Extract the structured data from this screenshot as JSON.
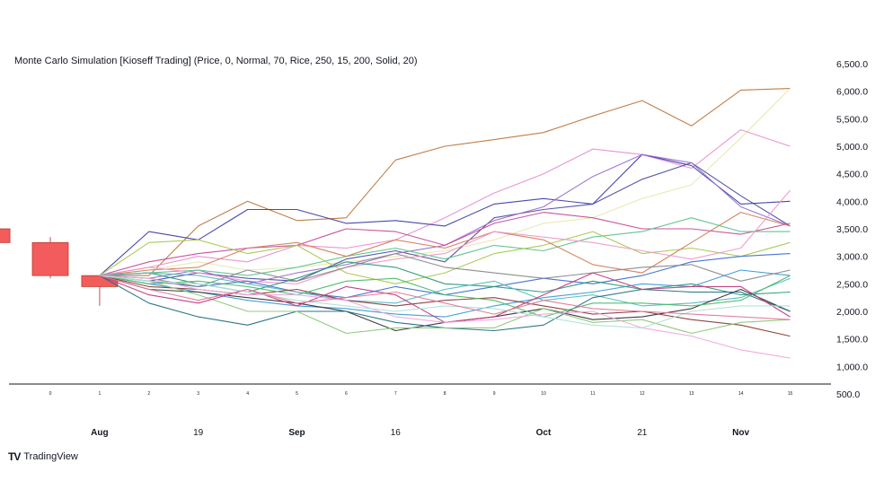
{
  "chart_data": {
    "type": "line",
    "title": "Monte Carlo Simulation [Kioseff Trading] (Price, 0, Normal, 70, Rice, 250, 15, 200, Solid, 20)",
    "ylim": [
      500,
      6500
    ],
    "y_ticks": [
      "6,500.0",
      "6,000.0",
      "5,500.0",
      "5,000.0",
      "4,500.0",
      "4,000.0",
      "3,500.0",
      "3,000.0",
      "2,500.0",
      "2,000.0",
      "1,500.0",
      "1,000.0",
      "500.0"
    ],
    "y_tick_values": [
      6500,
      6000,
      5500,
      5000,
      4500,
      4000,
      3500,
      3000,
      2500,
      2000,
      1500,
      1000,
      500
    ],
    "date_ticks": [
      {
        "label": "Aug",
        "pos": 1,
        "bold": true
      },
      {
        "label": "19",
        "pos": 3,
        "bold": false
      },
      {
        "label": "Sep",
        "pos": 5,
        "bold": true
      },
      {
        "label": "16",
        "pos": 7,
        "bold": false
      },
      {
        "label": "Oct",
        "pos": 10,
        "bold": true
      },
      {
        "label": "21",
        "pos": 12,
        "bold": false
      },
      {
        "label": "Nov",
        "pos": 14,
        "bold": true
      }
    ],
    "step_labels": [
      "0",
      "1",
      "2",
      "3",
      "4",
      "5",
      "6",
      "7",
      "8",
      "9",
      "10",
      "11",
      "12",
      "13",
      "14",
      "15"
    ],
    "candles": [
      {
        "pos": -1,
        "open": 3500,
        "close": 3250,
        "high": 3500,
        "low": 3250
      },
      {
        "pos": 0,
        "open": 3250,
        "close": 2650,
        "high": 3350,
        "low": 2600
      },
      {
        "pos": 1,
        "open": 2650,
        "close": 2450,
        "high": 2650,
        "low": 2100
      }
    ],
    "x": [
      1,
      2,
      3,
      4,
      5,
      6,
      7,
      8,
      9,
      10,
      11,
      12,
      13,
      14,
      15
    ],
    "series": [
      {
        "color": "#c0763a",
        "values": [
          2650,
          2650,
          3550,
          4000,
          3650,
          3700,
          4750,
          5000,
          5120,
          5250,
          5550,
          5830,
          5370,
          6020,
          6050
        ]
      },
      {
        "color": "#e8e8b0",
        "values": [
          2650,
          2750,
          2900,
          2750,
          2800,
          2900,
          3000,
          3100,
          3300,
          3600,
          3700,
          4050,
          4300,
          5150,
          6050
        ]
      },
      {
        "color": "#e88fd0",
        "values": [
          2650,
          2800,
          3000,
          2900,
          3200,
          3150,
          3300,
          3700,
          4150,
          4500,
          4950,
          4850,
          4600,
          5300,
          5000
        ]
      },
      {
        "color": "#4e4ea8",
        "values": [
          2650,
          2550,
          2700,
          2600,
          2550,
          2950,
          3100,
          2900,
          3700,
          3850,
          3950,
          4400,
          4700,
          4100,
          3550
        ]
      },
      {
        "color": "#3f3fa8",
        "values": [
          2650,
          3450,
          3300,
          3850,
          3850,
          3600,
          3650,
          3550,
          3950,
          4050,
          3950,
          4850,
          4650,
          3950,
          4000
        ]
      },
      {
        "color": "#9b6fd0",
        "values": [
          2650,
          2600,
          2750,
          2500,
          2700,
          2850,
          3050,
          3200,
          3650,
          3900,
          4450,
          4850,
          4700,
          3900,
          3550
        ]
      },
      {
        "color": "#c74c9a",
        "values": [
          2650,
          2900,
          3050,
          3150,
          3200,
          3500,
          3450,
          3200,
          3600,
          3800,
          3700,
          3500,
          3500,
          3400,
          3600
        ]
      },
      {
        "color": "#5ac38c",
        "values": [
          2650,
          2700,
          2750,
          2650,
          2800,
          3000,
          3150,
          2950,
          3200,
          3100,
          3350,
          3450,
          3700,
          3450,
          3450
        ]
      },
      {
        "color": "#a8c850",
        "values": [
          2650,
          3250,
          3300,
          3050,
          3200,
          2700,
          2500,
          2700,
          3050,
          3200,
          3450,
          3050,
          3150,
          3000,
          3250
        ]
      },
      {
        "color": "#d2805a",
        "values": [
          2650,
          2750,
          2800,
          3150,
          3250,
          3000,
          3300,
          3150,
          3450,
          3300,
          2850,
          2700,
          3250,
          3800,
          3550
        ]
      },
      {
        "color": "#ee99c8",
        "values": [
          2650,
          2800,
          2700,
          2550,
          2500,
          2800,
          2950,
          3050,
          3450,
          3350,
          3250,
          3100,
          2950,
          3150,
          4200
        ]
      },
      {
        "color": "#3d6fd0",
        "values": [
          2650,
          2550,
          2450,
          2550,
          2350,
          2250,
          2450,
          2300,
          2450,
          2600,
          2500,
          2650,
          2900,
          3000,
          3050
        ]
      },
      {
        "color": "#3a9ad8",
        "values": [
          2650,
          2500,
          2350,
          2200,
          2100,
          2050,
          1950,
          1900,
          2100,
          2250,
          2350,
          2500,
          2450,
          2750,
          2650
        ]
      },
      {
        "color": "#888888",
        "values": [
          2650,
          2600,
          2450,
          2750,
          2550,
          2800,
          3050,
          2800,
          2700,
          2600,
          2700,
          2800,
          2850,
          2550,
          2750
        ]
      },
      {
        "color": "#2a9a78",
        "values": [
          2650,
          2700,
          2500,
          2350,
          2600,
          2900,
          2800,
          2500,
          2450,
          2350,
          2550,
          2400,
          2500,
          2300,
          2350
        ]
      },
      {
        "color": "#56b9c0",
        "values": [
          2650,
          2700,
          2650,
          2500,
          2350,
          2200,
          2150,
          2400,
          2550,
          2200,
          2300,
          2100,
          2150,
          2250,
          2600
        ]
      },
      {
        "color": "#333333",
        "values": [
          2650,
          2400,
          2350,
          2250,
          2150,
          2000,
          1650,
          1800,
          1900,
          2050,
          1850,
          1900,
          2050,
          2400,
          2000
        ]
      },
      {
        "color": "#8a3a3a",
        "values": [
          2650,
          2450,
          2400,
          2300,
          2400,
          2200,
          2100,
          2200,
          2250,
          2100,
          1950,
          2000,
          1850,
          1750,
          1550
        ]
      },
      {
        "color": "#1f6f80",
        "values": [
          2650,
          2150,
          1900,
          1750,
          2000,
          2000,
          1800,
          1700,
          1650,
          1750,
          2250,
          2400,
          2350,
          2350,
          2000
        ]
      },
      {
        "color": "#8cc878",
        "values": [
          2650,
          2550,
          2300,
          2000,
          2000,
          1600,
          1700,
          1700,
          1700,
          2050,
          1800,
          1850,
          1600,
          1800,
          1850
        ]
      },
      {
        "color": "#c03a80",
        "values": [
          2650,
          2300,
          2150,
          2400,
          2100,
          2450,
          2300,
          1800,
          1900,
          2300,
          2700,
          2400,
          2450,
          2450,
          1900
        ]
      },
      {
        "color": "#4dba6a",
        "values": [
          2650,
          2500,
          2550,
          2450,
          2300,
          2550,
          2600,
          2300,
          2200,
          1900,
          2150,
          2150,
          2100,
          2200,
          2650
        ]
      },
      {
        "color": "#f0a8e0",
        "values": [
          2650,
          2600,
          2400,
          2300,
          2300,
          2200,
          1900,
          1800,
          1850,
          1950,
          2000,
          1700,
          1550,
          1300,
          1150
        ]
      },
      {
        "color": "#b0e0d8",
        "values": [
          2650,
          2550,
          2500,
          2350,
          2200,
          2100,
          2000,
          2100,
          2050,
          1900,
          1750,
          1700,
          2000,
          2100,
          2100
        ]
      },
      {
        "color": "#e07a9a",
        "values": [
          2650,
          2400,
          2200,
          2400,
          2150,
          2250,
          2350,
          2150,
          1950,
          2200,
          2050,
          2000,
          1950,
          1900,
          1850
        ]
      }
    ]
  },
  "brand": {
    "logo": "TV",
    "name": "TradingView"
  }
}
